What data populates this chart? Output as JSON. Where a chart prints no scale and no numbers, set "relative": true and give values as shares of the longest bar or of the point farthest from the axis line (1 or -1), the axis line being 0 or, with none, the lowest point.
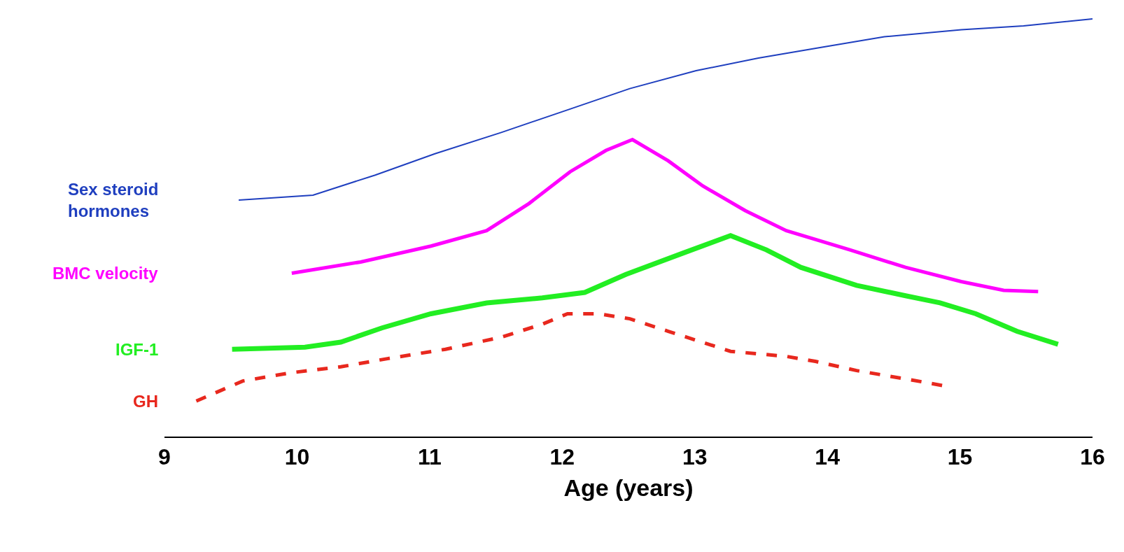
{
  "chart_data": {
    "type": "line",
    "relative": true,
    "xlabel": "Age (years)",
    "xlim": [
      9,
      16
    ],
    "xticks": [
      9,
      10,
      11,
      12,
      13,
      14,
      15,
      16
    ],
    "legend": false,
    "series": [
      {
        "name": "Sex steroid hormones",
        "color": "#1f3fbf",
        "line_style": "solid",
        "x": [
          9.56,
          10.12,
          10.59,
          11.04,
          11.54,
          12.04,
          12.51,
          13.01,
          13.48,
          13.96,
          14.43,
          15.01,
          15.48,
          16.0
        ],
        "values": [
          0.566,
          0.578,
          0.626,
          0.677,
          0.728,
          0.782,
          0.833,
          0.876,
          0.906,
          0.932,
          0.957,
          0.974,
          0.983,
          1.0
        ]
      },
      {
        "name": "BMC velocity",
        "color": "#ff00ff",
        "line_style": "solid",
        "x": [
          9.96,
          10.48,
          11.01,
          11.43,
          11.75,
          12.06,
          12.33,
          12.53,
          12.8,
          13.06,
          13.38,
          13.69,
          14.17,
          14.59,
          15.01,
          15.33,
          15.59
        ],
        "values": [
          0.391,
          0.418,
          0.456,
          0.493,
          0.558,
          0.634,
          0.685,
          0.711,
          0.66,
          0.6,
          0.541,
          0.493,
          0.447,
          0.405,
          0.371,
          0.35,
          0.347
        ]
      },
      {
        "name": "IGF-1",
        "color": "#22ee22",
        "line_style": "solid",
        "x": [
          9.51,
          10.06,
          10.33,
          10.64,
          11.01,
          11.43,
          11.85,
          12.17,
          12.48,
          12.91,
          13.27,
          13.54,
          13.8,
          14.22,
          14.59,
          14.85,
          15.12,
          15.43,
          15.74
        ],
        "values": [
          0.209,
          0.214,
          0.226,
          0.26,
          0.294,
          0.32,
          0.332,
          0.345,
          0.388,
          0.439,
          0.481,
          0.447,
          0.405,
          0.362,
          0.337,
          0.32,
          0.294,
          0.252,
          0.221
        ]
      },
      {
        "name": "GH",
        "color": "#e8281e",
        "line_style": "dashed",
        "x": [
          9.24,
          9.59,
          9.96,
          10.33,
          10.69,
          11.12,
          11.54,
          11.85,
          12.04,
          12.27,
          12.51,
          12.8,
          13.27,
          13.69,
          13.91,
          14.22,
          14.59,
          14.89
        ],
        "values": [
          0.085,
          0.133,
          0.153,
          0.167,
          0.187,
          0.209,
          0.238,
          0.269,
          0.294,
          0.294,
          0.282,
          0.252,
          0.204,
          0.192,
          0.18,
          0.158,
          0.138,
          0.121
        ]
      }
    ]
  }
}
